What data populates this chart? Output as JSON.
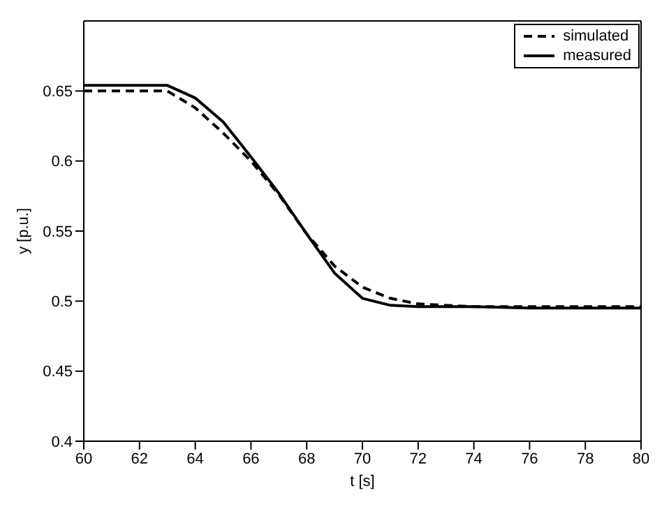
{
  "chart_data": {
    "type": "line",
    "xlabel": "t [s]",
    "ylabel": "y [p.u.]",
    "xlim": [
      60,
      80
    ],
    "ylim": [
      0.4,
      0.7
    ],
    "xticks": [
      60,
      62,
      64,
      66,
      68,
      70,
      72,
      74,
      76,
      78,
      80
    ],
    "yticks": [
      0.4,
      0.45,
      0.5,
      0.55,
      0.6,
      0.65
    ],
    "legend": "top right",
    "grid": false,
    "marker": "none",
    "series": [
      {
        "name": "simulated",
        "color": "#000000",
        "line_style": "dashed",
        "x": [
          60,
          63,
          64,
          65,
          66,
          67,
          68,
          69,
          70,
          71,
          72,
          74,
          76,
          78,
          80
        ],
        "values": [
          0.65,
          0.65,
          0.638,
          0.62,
          0.6,
          0.576,
          0.548,
          0.525,
          0.51,
          0.502,
          0.498,
          0.496,
          0.496,
          0.496,
          0.496
        ]
      },
      {
        "name": "measured",
        "color": "#000000",
        "line_style": "solid",
        "x": [
          60,
          63,
          64,
          65,
          66,
          67,
          68,
          69,
          70,
          71,
          72,
          74,
          76,
          78,
          80
        ],
        "values": [
          0.654,
          0.654,
          0.645,
          0.628,
          0.603,
          0.577,
          0.548,
          0.52,
          0.502,
          0.497,
          0.496,
          0.496,
          0.495,
          0.495,
          0.495
        ]
      }
    ]
  }
}
